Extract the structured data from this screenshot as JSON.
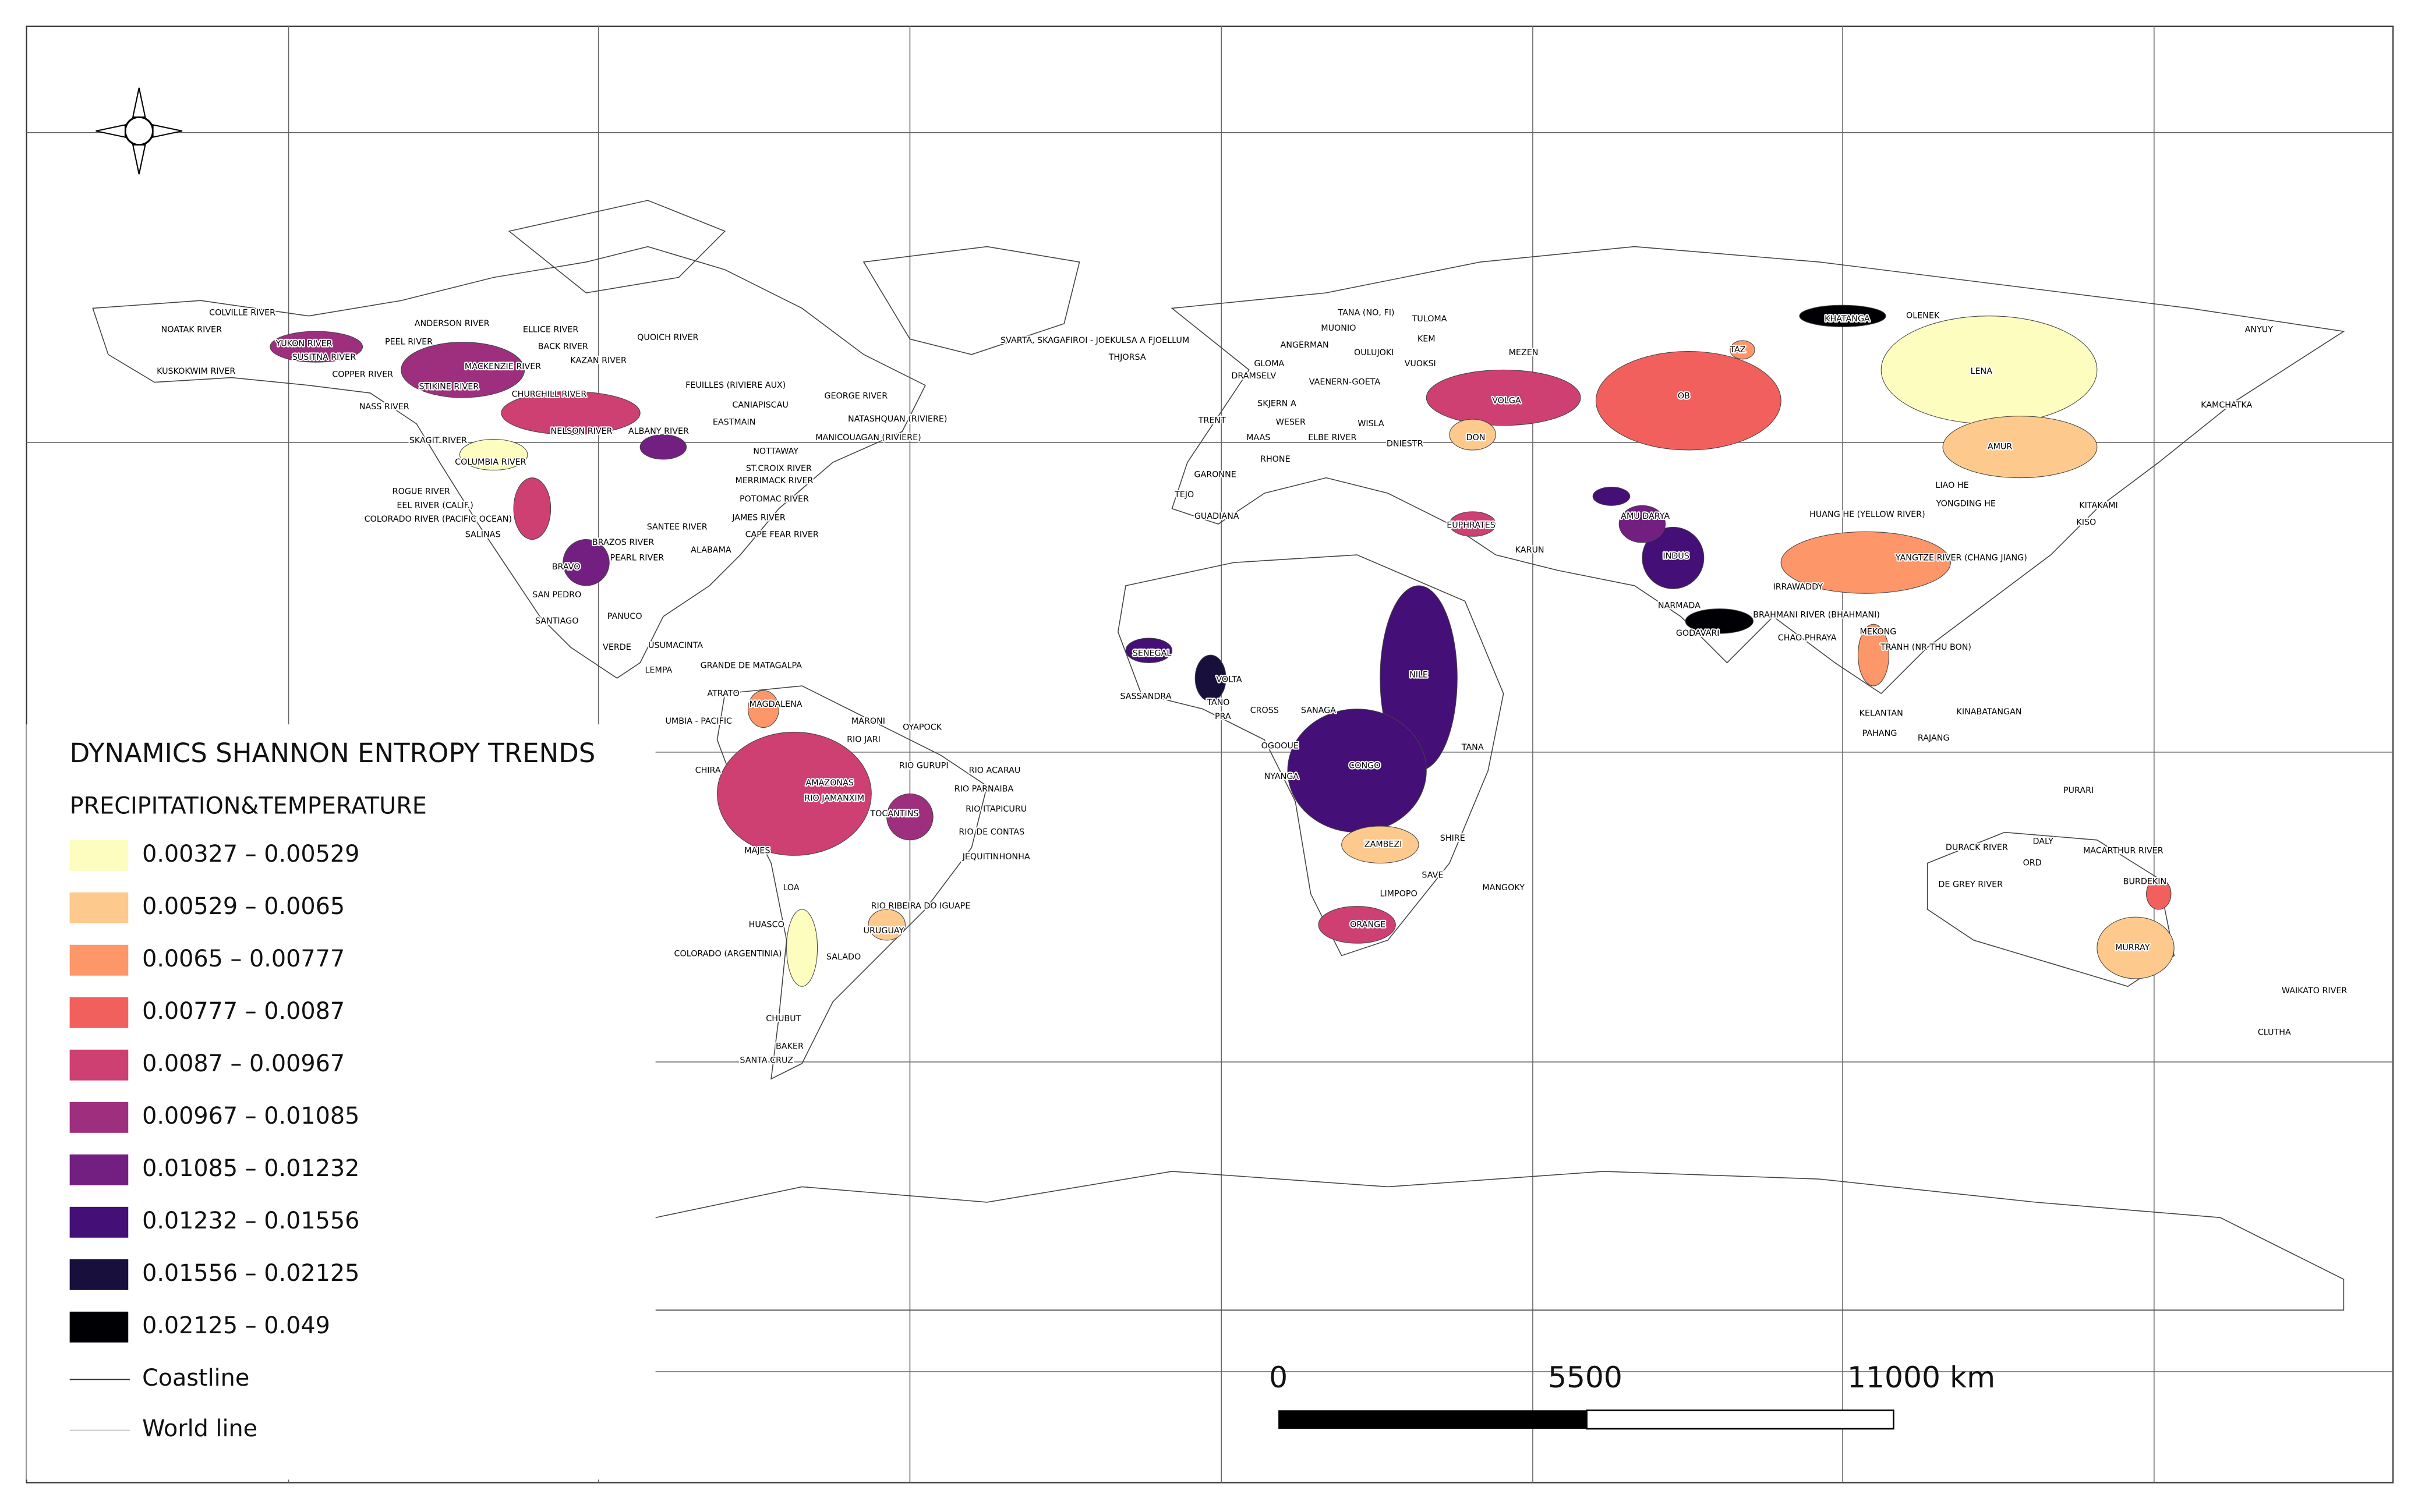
{
  "legend": {
    "title": "DYNAMICS SHANNON ENTROPY TRENDS",
    "subtitle": "PRECIPITATION&TEMPERATURE",
    "classes": [
      {
        "label": "0.00327 – 0.00529",
        "color": "#fcfdbf"
      },
      {
        "label": "0.00529 – 0.0065",
        "color": "#fec98d"
      },
      {
        "label": "0.0065 – 0.00777",
        "color": "#fd9668"
      },
      {
        "label": "0.00777 – 0.0087",
        "color": "#f1605d"
      },
      {
        "label": "0.0087 – 0.00967",
        "color": "#cd4071"
      },
      {
        "label": "0.00967 – 0.01085",
        "color": "#9e2f7f"
      },
      {
        "label": "0.01085 – 0.01232",
        "color": "#721f81"
      },
      {
        "label": "0.01232 – 0.01556",
        "color": "#440f76"
      },
      {
        "label": "0.01556 – 0.02125",
        "color": "#180f3d"
      },
      {
        "label": "0.02125 – 0.049",
        "color": "#000004"
      }
    ],
    "coastline": "Coastline",
    "world_line": "World line"
  },
  "scale_bar": {
    "labels": [
      "0",
      "5500",
      "11000 km"
    ]
  },
  "rivers": [
    "COLVILLE RIVER",
    "NOATAK RIVER",
    "YUKON RIVER",
    "PEEL RIVER",
    "ANDERSON RIVER",
    "ELLICE RIVER",
    "QUOICH RIVER",
    "BACK RIVER",
    "KAZAN RIVER",
    "KUSKOKWIM RIVER",
    "SUSITNA RIVER",
    "COPPER RIVER",
    "MACKENZIE RIVER",
    "CHURCHILL RIVER",
    "STIKINE RIVER",
    "NASS RIVER",
    "NELSON RIVER",
    "ALBANY RIVER",
    "SKAGIT RIVER",
    "COLUMBIA RIVER",
    "ROGUE RIVER",
    "EEL RIVER (CALIF.)",
    "COLORADO RIVER (PACIFIC OCEAN)",
    "SALINAS",
    "BRAZOS RIVER",
    "PEARL RIVER",
    "SANTEE RIVER",
    "ALABAMA",
    "BRAVO",
    "SAN PEDRO",
    "SANTIAGO",
    "PANUCO",
    "VERDE",
    "USUMACINTA",
    "LEMPA",
    "GRANDE DE MATAGALPA",
    "ATRATO",
    "MAGDALENA",
    "UMBIA - PACIFIC",
    "MARONI",
    "OYAPOCK",
    "RIO JARI",
    "CHIRA",
    "RIO GURUPI",
    "RIO ACARAU",
    "AMAZONAS",
    "RIO JAMANXIM",
    "RIO PARNAIBA",
    "TOCANTINS",
    "RIO ITAPICURU",
    "RIO DE CONTAS",
    "JEQUITINHONHA",
    "MAJES",
    "LOA",
    "RIO RIBEIRA DO IGUAPE",
    "HUASCO",
    "URUGUAY",
    "COLORADO (ARGENTINIA)",
    "SALADO",
    "CHUBUT",
    "BAKER",
    "SANTA CRUZ",
    "FEUILLES (RIVIERE AUX)",
    "GEORGE RIVER",
    "CANIAPISCAU",
    "EASTMAIN",
    "NATASHQUAN (RIVIERE)",
    "MANICOUAGAN (RIVIERE)",
    "NOTTAWAY",
    "ST.CROIX RIVER",
    "MERRIMACK RIVER",
    "POTOMAC RIVER",
    "JAMES RIVER",
    "CAPE FEAR RIVER",
    "SVARTA, SKAGAFIROI - JOEKULSA A FJOELLUM",
    "THJORSA",
    "TANA (NO, FI)",
    "MUONIO",
    "TULOMA",
    "KEM",
    "ANGERMAN",
    "OULUJOKI",
    "VUOKSI",
    "GLOMA",
    "MEZEN",
    "DRAMSELV",
    "VAENERN-GOETA",
    "TAZ",
    "KHATANGA",
    "OLENEK",
    "ANYUY",
    "LENA",
    "TRENT",
    "SKJERN A",
    "MAAS",
    "WESER",
    "ELBE RIVER",
    "WISLA",
    "DNIESTR",
    "VOLGA",
    "OB",
    "DON",
    "KAMCHATKA",
    "AMUR",
    "RHONE",
    "GARONNE",
    "TEJO",
    "GUADIANA",
    "LIAO HE",
    "YONGDING HE",
    "KITAKAMI",
    "HUANG HE (YELLOW RIVER)",
    "KISO",
    "EUPHRATES",
    "AMU DARYA",
    "KARUN",
    "INDUS",
    "YANGTZE RIVER (CHANG JIANG)",
    "IRRAWADDY",
    "NARMADA",
    "GODAVARI",
    "BRAHMANI RIVER (BHAHMANI)",
    "MEKONG",
    "CHAO PHRAYA",
    "TRANH (NR THU BON)",
    "NILE",
    "VOLTA",
    "SENEGAL",
    "SASSANDRA",
    "TANO",
    "PRA",
    "CROSS",
    "SANAGA",
    "KELANTAN",
    "PAHANG",
    "RAJANG",
    "KINABATANGAN",
    "OGOOUE",
    "TANA",
    "CONGO",
    "NYANGA",
    "PURARI",
    "SHIRE",
    "ZAMBEZI",
    "DURACK RIVER",
    "DALY",
    "MACARTHUR RIVER",
    "ORD",
    "SAVE",
    "MANGOKY",
    "LIMPOPO",
    "DE GREY RIVER",
    "BURDEKIN",
    "ORANGE",
    "MURRAY",
    "WAIKATO RIVER",
    "CLUTHA"
  ]
}
